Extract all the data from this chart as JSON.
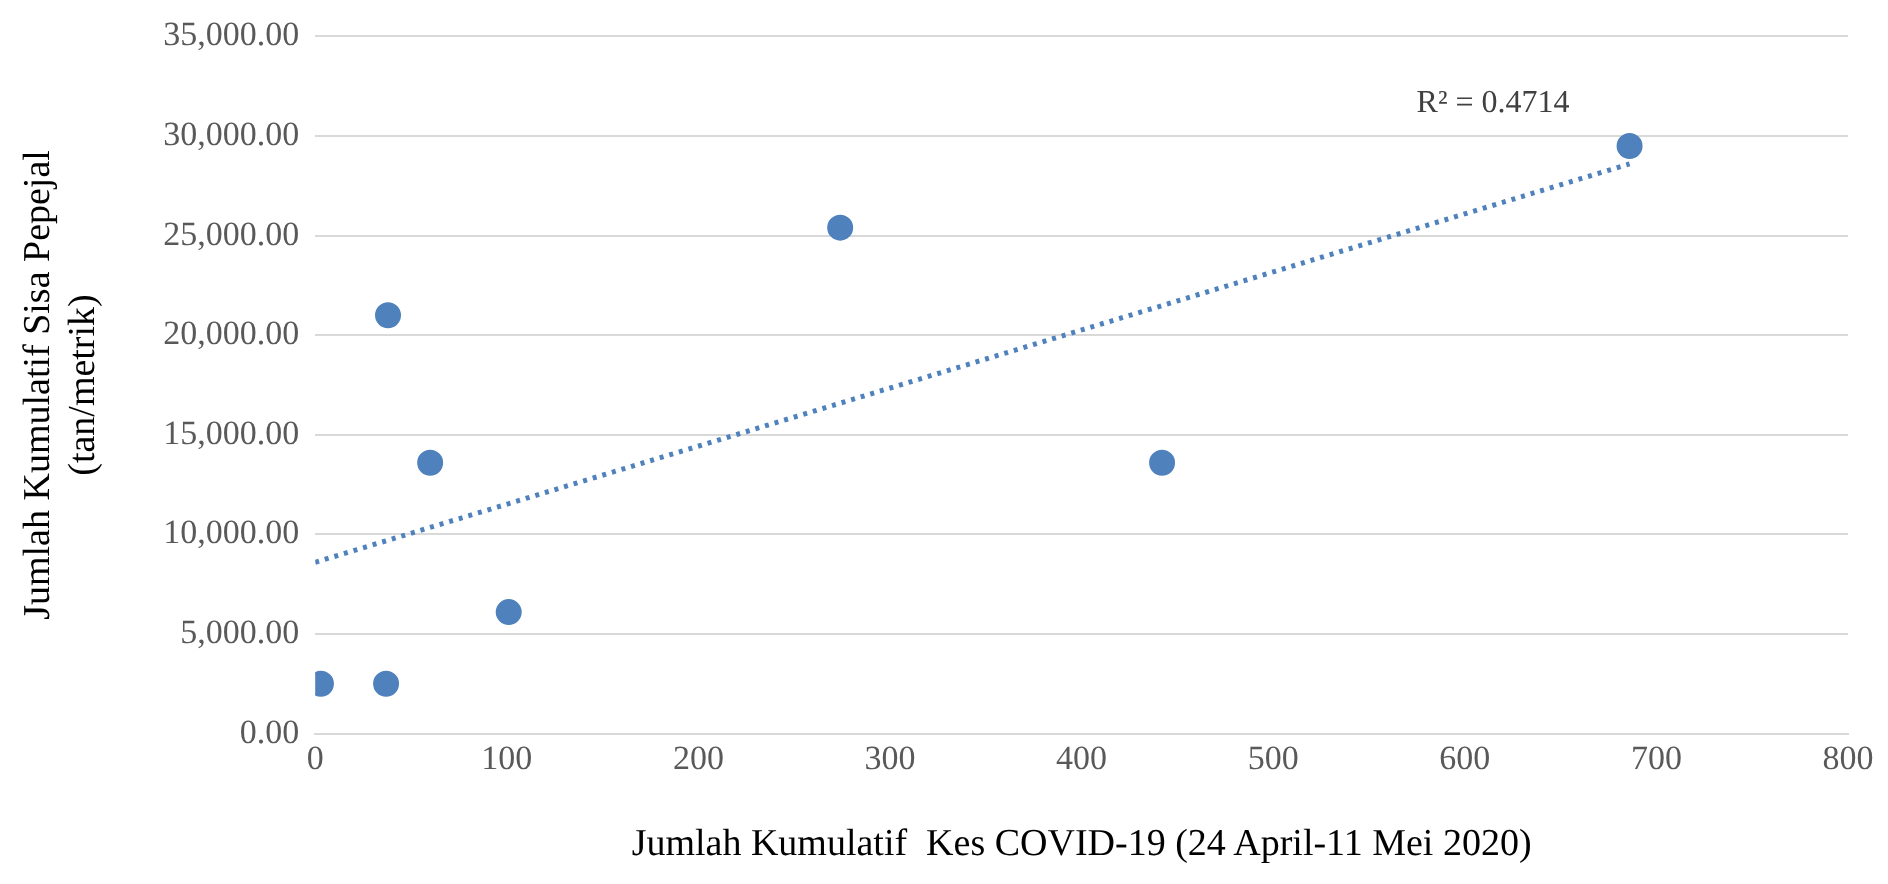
{
  "chart_data": {
    "type": "scatter",
    "xlabel": "Jumlah Kumulatif  Kes COVID-19 (24 April-11 Mei 2020)",
    "ylabel": "Jumlah Kumulatif Sisa Pepejal\n(tan/metrik)",
    "series": [
      {
        "color": "#4f81bd",
        "x": [
          3,
          37,
          38,
          60,
          101,
          274,
          442,
          686
        ],
        "values": [
          2500,
          2500,
          21000,
          13600,
          6100,
          25400,
          13600,
          29500
        ],
        "marker": "circle"
      },
      {
        "type": "line",
        "color": "#4f81bd",
        "x": [
          0,
          686
        ],
        "values": [
          8600,
          28600
        ],
        "line_style": "dotted",
        "marker": "none"
      }
    ],
    "annotations": [
      "R² = 0.4714"
    ],
    "xlim": [
      0,
      800
    ],
    "xticks": [
      0,
      100,
      200,
      300,
      400,
      500,
      600,
      700,
      800
    ],
    "ylim": [
      0,
      35000
    ],
    "yticks": [
      {
        "value": 0,
        "label": "0.00"
      },
      {
        "value": 5000,
        "label": "5,000.00"
      },
      {
        "value": 10000,
        "label": "10,000.00"
      },
      {
        "value": 15000,
        "label": "15,000.00"
      },
      {
        "value": 20000,
        "label": "20,000.00"
      },
      {
        "value": 25000,
        "label": "25,000.00"
      },
      {
        "value": 30000,
        "label": "30,000.00"
      },
      {
        "value": 35000,
        "label": "35,000.00"
      }
    ],
    "grid": "y",
    "legend": false
  }
}
